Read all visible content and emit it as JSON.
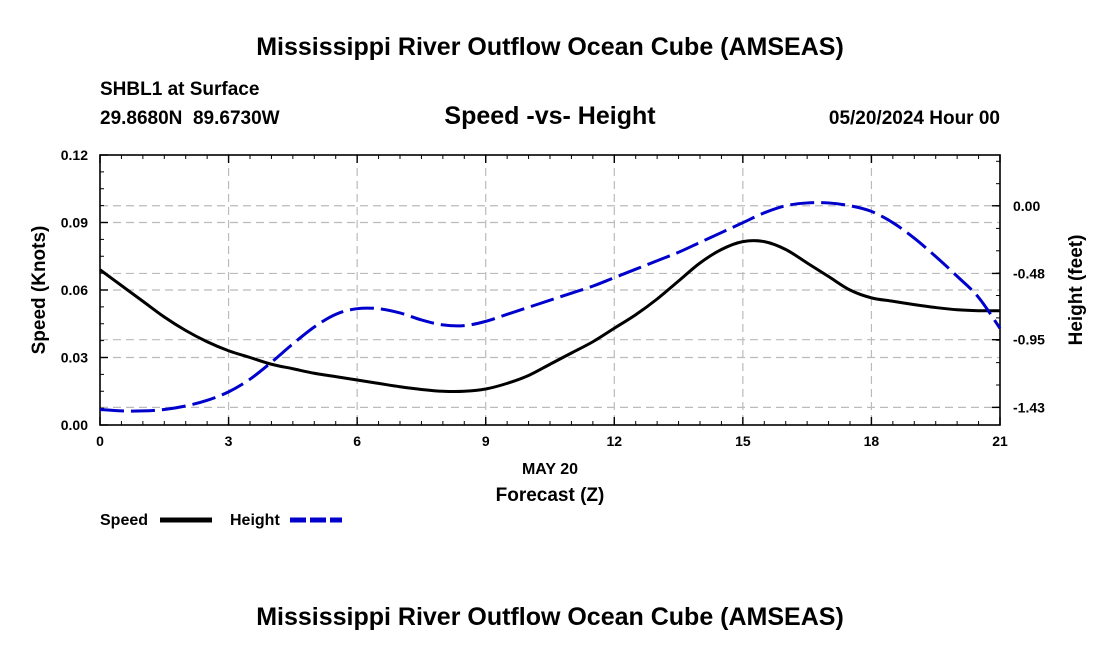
{
  "header": {
    "title_top": "Mississippi River Outflow Ocean Cube (AMSEAS)",
    "title_bottom": "Mississippi River Outflow Ocean Cube (AMSEAS)",
    "station": "SHBL1 at Surface",
    "coords": "29.8680N  89.6730W",
    "date": "05/20/2024 Hour 00"
  },
  "chart_data": {
    "type": "line",
    "title": "Speed -vs- Height",
    "xlabel": "Forecast (Z)",
    "xsublabel": "MAY 20",
    "ylabel": "Speed (Knots)",
    "y2label": "Height (feet)",
    "xlim": [
      0,
      21
    ],
    "ylim": [
      0,
      0.12
    ],
    "y2lim": [
      -1.555,
      0.36
    ],
    "x_ticks": [
      "0",
      "3",
      "6",
      "9",
      "12",
      "15",
      "18",
      "21"
    ],
    "y_ticks": [
      "0.00",
      "0.03",
      "0.06",
      "0.09",
      "0.12"
    ],
    "y2_ticks": [
      "-1.43",
      "-0.95",
      "-0.48",
      "0.00"
    ],
    "grid": true,
    "series": [
      {
        "name": "Speed",
        "axis": "left",
        "color": "#000000",
        "style": "solid",
        "x": [
          0,
          0.5,
          1,
          1.5,
          2,
          2.5,
          3,
          3.5,
          4,
          4.5,
          5,
          5.5,
          6,
          6.5,
          7,
          7.5,
          8,
          8.5,
          9,
          9.5,
          10,
          10.5,
          11,
          11.5,
          12,
          12.5,
          13,
          13.5,
          14,
          14.5,
          15,
          15.5,
          16,
          16.5,
          17,
          17.5,
          18,
          18.5,
          19,
          19.5,
          20,
          20.5,
          21
        ],
        "values": [
          0.069,
          0.062,
          0.055,
          0.048,
          0.042,
          0.037,
          0.033,
          0.03,
          0.027,
          0.025,
          0.023,
          0.0215,
          0.02,
          0.0185,
          0.017,
          0.0158,
          0.015,
          0.015,
          0.016,
          0.0185,
          0.022,
          0.027,
          0.032,
          0.037,
          0.043,
          0.049,
          0.056,
          0.064,
          0.072,
          0.078,
          0.0815,
          0.0815,
          0.078,
          0.072,
          0.066,
          0.06,
          0.0565,
          0.055,
          0.0535,
          0.0522,
          0.0512,
          0.0508,
          0.0508
        ]
      },
      {
        "name": "Height",
        "axis": "right",
        "color": "#0000cc",
        "style": "dashed",
        "x": [
          0,
          0.5,
          1,
          1.5,
          2,
          2.5,
          3,
          3.5,
          4,
          4.5,
          5,
          5.5,
          6,
          6.5,
          7,
          7.5,
          8,
          8.5,
          9,
          9.5,
          10,
          10.5,
          11,
          11.5,
          12,
          12.5,
          13,
          13.5,
          14,
          14.5,
          15,
          15.5,
          16,
          16.5,
          17,
          17.5,
          18,
          18.5,
          19,
          19.5,
          20,
          20.5,
          21
        ],
        "values": [
          -1.445,
          -1.455,
          -1.455,
          -1.445,
          -1.42,
          -1.38,
          -1.32,
          -1.23,
          -1.11,
          -0.98,
          -0.86,
          -0.77,
          -0.73,
          -0.73,
          -0.76,
          -0.81,
          -0.845,
          -0.85,
          -0.82,
          -0.77,
          -0.72,
          -0.67,
          -0.62,
          -0.57,
          -0.51,
          -0.45,
          -0.39,
          -0.33,
          -0.26,
          -0.19,
          -0.12,
          -0.05,
          0.0,
          0.02,
          0.02,
          0.0,
          -0.04,
          -0.12,
          -0.23,
          -0.36,
          -0.5,
          -0.65,
          -0.87
        ]
      }
    ],
    "legend": [
      {
        "label": "Speed",
        "color": "#000000",
        "style": "solid"
      },
      {
        "label": "Height",
        "color": "#0000cc",
        "style": "dashed"
      }
    ],
    "legend_position": "bottom-left"
  }
}
